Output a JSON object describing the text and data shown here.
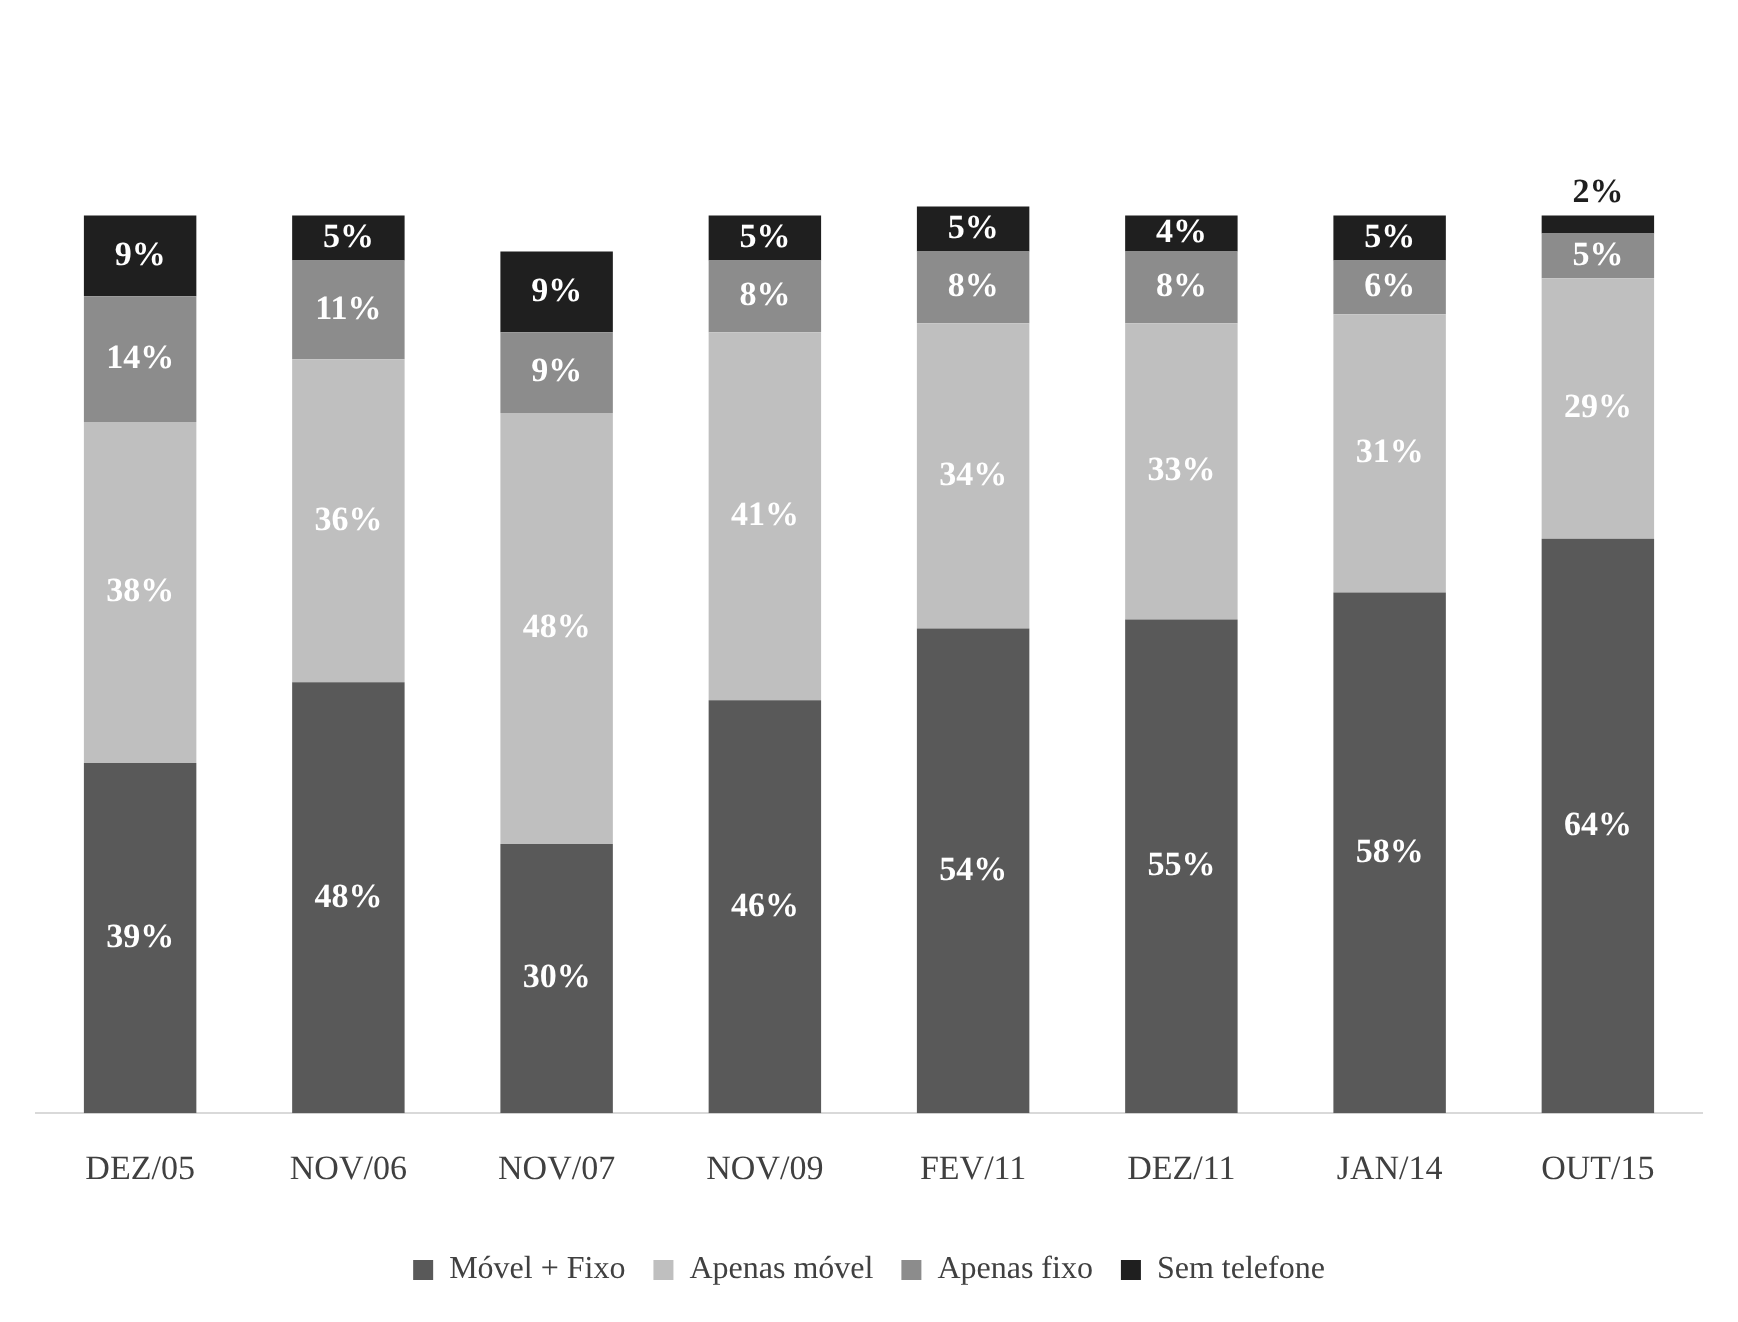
{
  "chart_data": {
    "type": "bar",
    "stacked": true,
    "categories": [
      "DEZ/05",
      "NOV/06",
      "NOV/07",
      "NOV/09",
      "FEV/11",
      "DEZ/11",
      "JAN/14",
      "OUT/15"
    ],
    "series": [
      {
        "name": "Móvel + Fixo",
        "color": "#595959",
        "values": [
          39,
          48,
          30,
          46,
          54,
          55,
          58,
          64
        ],
        "value_labels": [
          "39%",
          "48%",
          "30%",
          "46%",
          "54%",
          "55%",
          "58%",
          "64%"
        ]
      },
      {
        "name": "Apenas móvel",
        "color": "#bfbfbf",
        "values": [
          38,
          36,
          48,
          41,
          34,
          33,
          31,
          29
        ],
        "value_labels": [
          "38%",
          "36%",
          "48%",
          "41%",
          "34%",
          "33%",
          "31%",
          "29%"
        ]
      },
      {
        "name": "Apenas fixo",
        "color": "#8c8c8c",
        "values": [
          14,
          11,
          9,
          8,
          8,
          8,
          6,
          5
        ],
        "value_labels": [
          "14%",
          "11%",
          "9%",
          "8%",
          "8%",
          "8%",
          "6%",
          "5%"
        ]
      },
      {
        "name": "Sem telefone",
        "color": "#1f1f1f",
        "values": [
          9,
          5,
          9,
          5,
          5,
          4,
          5,
          2
        ],
        "value_labels": [
          "9%",
          "5%",
          "9%",
          "5%",
          "5%",
          "4%",
          "5%",
          "2%"
        ]
      }
    ],
    "legend": "bottom",
    "grid": false
  }
}
